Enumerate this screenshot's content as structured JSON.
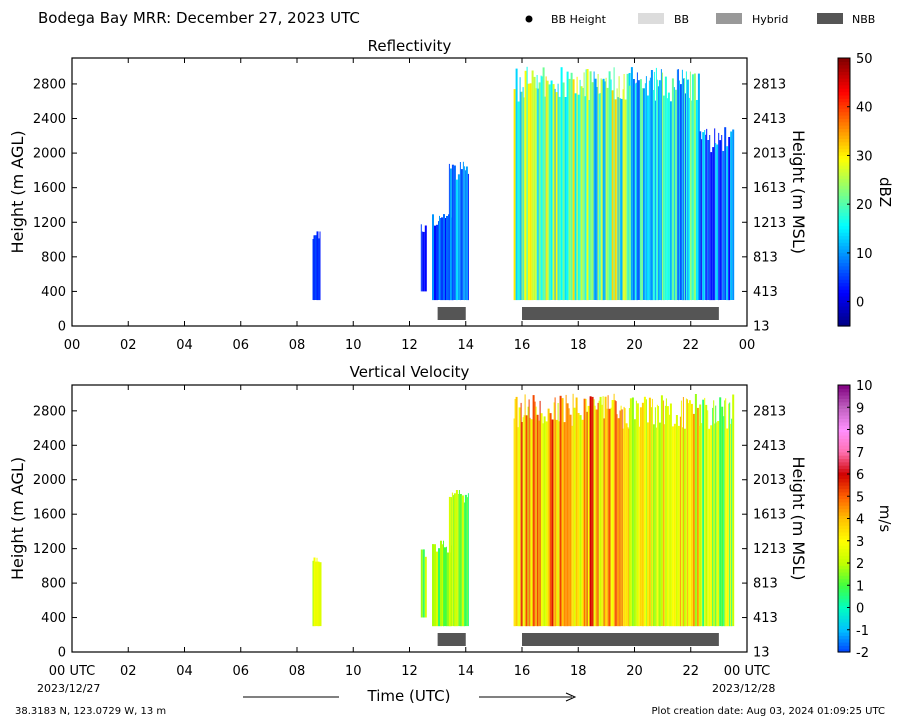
{
  "header": {
    "title": "Bodega Bay MRR:  December 27, 2023 UTC",
    "legend": [
      {
        "label": "BB Height",
        "kind": "dot",
        "color": "#000000"
      },
      {
        "label": "BB",
        "kind": "box",
        "color": "#dcdcdc"
      },
      {
        "label": "Hybrid",
        "kind": "box",
        "color": "#999999"
      },
      {
        "label": "NBB",
        "kind": "box",
        "color": "#555555"
      }
    ]
  },
  "footer": {
    "location": "38.3183 N, 123.0729 W, 13 m",
    "creation": "Plot creation date: Aug 03, 2024 01:09:25 UTC",
    "xlabel": "Time (UTC)",
    "start_date": "2023/12/27",
    "end_date": "2023/12/28"
  },
  "chart_data": [
    {
      "type": "heatmap",
      "title": "Reflectivity",
      "ylabel": "Height (m AGL)",
      "ylabel_right": "Height (m MSL)",
      "colorbar_label": "dBZ",
      "xlim": [
        0,
        24
      ],
      "ylim": [
        0,
        3100
      ],
      "x_ticks": [
        "00",
        "02",
        "04",
        "06",
        "08",
        "10",
        "12",
        "14",
        "16",
        "18",
        "20",
        "22",
        "00"
      ],
      "y_ticks": [
        0,
        400,
        800,
        1200,
        1600,
        2000,
        2400,
        2800
      ],
      "y_ticks_right": [
        "13",
        "413",
        "813",
        "1213",
        "1613",
        "2013",
        "2413",
        "2813"
      ],
      "colorbar_range": [
        -5,
        50
      ],
      "colorbar_ticks": [
        0,
        10,
        20,
        30,
        40,
        50
      ],
      "colormap": [
        "#000080",
        "#0000ff",
        "#0080ff",
        "#00ffff",
        "#80ff80",
        "#ffff00",
        "#ff8000",
        "#ff0000",
        "#800000"
      ],
      "echo_blocks": [
        {
          "x_start": 8.55,
          "x_end": 8.8,
          "top": 1100,
          "base": 300,
          "value_low": 3,
          "value_high": 6
        },
        {
          "x_start": 12.4,
          "x_end": 12.6,
          "top": 1200,
          "base": 400,
          "value_low": 1,
          "value_high": 6
        },
        {
          "x_start": 12.8,
          "x_end": 13.5,
          "top": 1300,
          "base": 300,
          "value_low": 2,
          "value_high": 10
        },
        {
          "x_start": 13.4,
          "x_end": 14.1,
          "top": 1900,
          "base": 300,
          "value_low": 3,
          "value_high": 14
        },
        {
          "x_start": 15.7,
          "x_end": 19.8,
          "top": 3000,
          "base": 300,
          "value_low": 10,
          "value_high": 32
        },
        {
          "x_start": 19.8,
          "x_end": 22.3,
          "top": 3000,
          "base": 300,
          "value_low": 5,
          "value_high": 24
        },
        {
          "x_start": 22.3,
          "x_end": 23.5,
          "top": 2300,
          "base": 300,
          "value_low": 0,
          "value_high": 14
        }
      ],
      "bright_band": [
        {
          "class": "NBB",
          "x_start": 13.0,
          "x_end": 14.0
        },
        {
          "class": "NBB",
          "x_start": 16.0,
          "x_end": 23.0
        }
      ]
    },
    {
      "type": "heatmap",
      "title": "Vertical Velocity",
      "ylabel": "Height (m AGL)",
      "ylabel_right": "Height (m MSL)",
      "colorbar_label": "m/s",
      "xlim": [
        0,
        24
      ],
      "ylim": [
        0,
        3100
      ],
      "x_ticks": [
        "00 UTC",
        "02",
        "04",
        "06",
        "08",
        "10",
        "12",
        "14",
        "16",
        "18",
        "20",
        "22",
        "00 UTC"
      ],
      "y_ticks": [
        0,
        400,
        800,
        1200,
        1600,
        2000,
        2400,
        2800
      ],
      "y_ticks_right": [
        "13",
        "413",
        "813",
        "1213",
        "1613",
        "2013",
        "2413",
        "2813"
      ],
      "colorbar_range": [
        -2,
        10
      ],
      "colorbar_ticks": [
        -2,
        -1,
        0,
        1,
        2,
        3,
        4,
        5,
        6,
        7,
        8,
        9,
        10
      ],
      "colormap": [
        "#0040ff",
        "#00c0ff",
        "#00ffc0",
        "#40ff40",
        "#c0ff00",
        "#ffff00",
        "#ffc000",
        "#ff6000",
        "#d00000",
        "#ff70b0",
        "#ff90ff",
        "#c060c0",
        "#800080"
      ],
      "echo_blocks": [
        {
          "x_start": 8.55,
          "x_end": 8.8,
          "top": 1100,
          "base": 300,
          "value_low": 1.5,
          "value_high": 3
        },
        {
          "x_start": 12.4,
          "x_end": 12.6,
          "top": 1200,
          "base": 400,
          "value_low": 0.5,
          "value_high": 2.5
        },
        {
          "x_start": 12.8,
          "x_end": 13.5,
          "top": 1300,
          "base": 300,
          "value_low": 0.5,
          "value_high": 2.5
        },
        {
          "x_start": 13.4,
          "x_end": 14.1,
          "top": 1900,
          "base": 300,
          "value_low": 0.5,
          "value_high": 2.5
        },
        {
          "x_start": 15.7,
          "x_end": 19.8,
          "top": 3000,
          "base": 300,
          "value_low": 2,
          "value_high": 6
        },
        {
          "x_start": 19.8,
          "x_end": 22.3,
          "top": 3000,
          "base": 300,
          "value_low": 1,
          "value_high": 4.5
        },
        {
          "x_start": 22.3,
          "x_end": 23.5,
          "top": 3000,
          "base": 300,
          "value_low": 0.5,
          "value_high": 3
        }
      ],
      "bright_band": [
        {
          "class": "NBB",
          "x_start": 13.0,
          "x_end": 14.0
        },
        {
          "class": "NBB",
          "x_start": 16.0,
          "x_end": 23.0
        }
      ]
    }
  ]
}
